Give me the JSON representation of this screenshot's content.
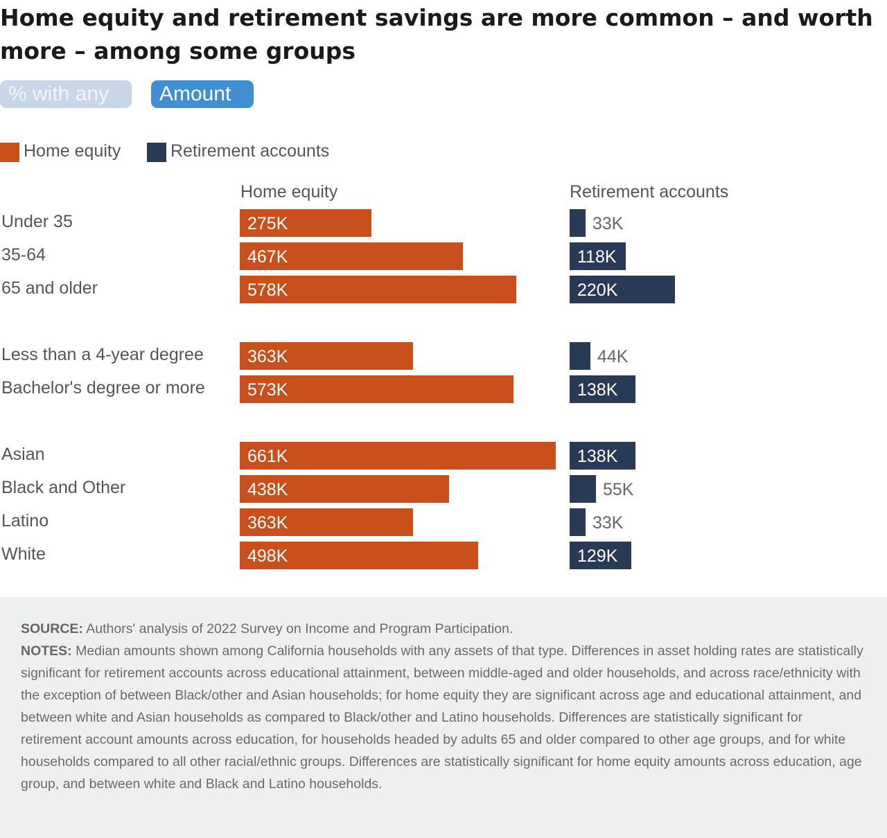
{
  "title": "Home equity and retirement savings are more common – and worth more – among some groups",
  "toggle": {
    "inactive_label": "% with any",
    "active_label": "Amount"
  },
  "legend": {
    "home_equity": "Home equity",
    "retirement": "Retirement accounts"
  },
  "colors": {
    "home_equity": "#c94f1c",
    "retirement": "#283a56",
    "toggle_active": "#3f8fd2",
    "toggle_inactive": "#c9d6e6"
  },
  "chart_data": {
    "type": "bar",
    "orientation": "horizontal",
    "unit": "K",
    "panels": [
      "Home equity",
      "Retirement accounts"
    ],
    "groups": [
      {
        "categories": [
          "Under 35",
          "35-64",
          "65 and older"
        ]
      },
      {
        "categories": [
          "Less than a 4-year degree",
          "Bachelor's degree or more"
        ]
      },
      {
        "categories": [
          "Asian",
          "Black and Other",
          "Latino",
          "White"
        ]
      }
    ],
    "categories": [
      "Under 35",
      "35-64",
      "65 and older",
      "Less than a 4-year degree",
      "Bachelor's degree or more",
      "Asian",
      "Black and Other",
      "Latino",
      "White"
    ],
    "series": [
      {
        "name": "Home equity",
        "values": [
          275,
          467,
          578,
          363,
          573,
          661,
          438,
          363,
          498
        ],
        "labels": [
          "275K",
          "467K",
          "578K",
          "363K",
          "573K",
          "661K",
          "438K",
          "363K",
          "498K"
        ]
      },
      {
        "name": "Retirement accounts",
        "values": [
          33,
          118,
          220,
          44,
          138,
          138,
          55,
          33,
          129
        ],
        "labels": [
          "33K",
          "118K",
          "220K",
          "44K",
          "138K",
          "138K",
          "55K",
          "33K",
          "129K"
        ]
      }
    ]
  },
  "footer": {
    "source_label": "SOURCE:",
    "source_text": "Authors' analysis of 2022 Survey on Income and Program Participation.",
    "notes_label": "NOTES:",
    "notes_text": "Median amounts shown among California households with any assets of that type. Differences in asset holding rates are statistically significant for retirement accounts across educational attainment, between middle-aged and older households, and across race/ethnicity with the exception of between Black/other and Asian households; for home equity they are significant across age and educational attainment, and between white and Asian households as compared to Black/other and Latino households. Differences are statistically significant for retirement account amounts across education, for households headed by adults 65 and older compared to other age groups, and for white households compared to all other racial/ethnic groups. Differences are statistically significant for home equity amounts across education, age group, and between white and Black and Latino households."
  }
}
